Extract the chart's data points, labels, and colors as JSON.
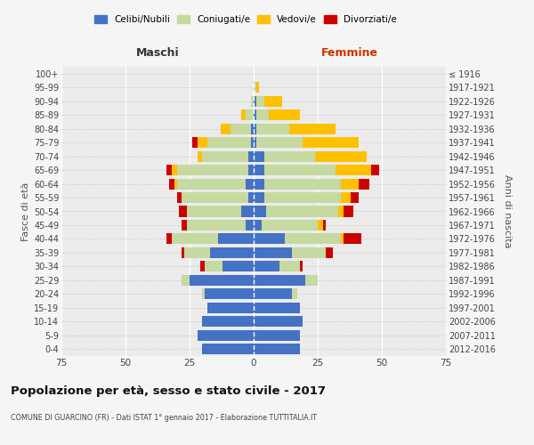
{
  "age_groups": [
    "0-4",
    "5-9",
    "10-14",
    "15-19",
    "20-24",
    "25-29",
    "30-34",
    "35-39",
    "40-44",
    "45-49",
    "50-54",
    "55-59",
    "60-64",
    "65-69",
    "70-74",
    "75-79",
    "80-84",
    "85-89",
    "90-94",
    "95-99",
    "100+"
  ],
  "birth_years": [
    "2012-2016",
    "2007-2011",
    "2002-2006",
    "1997-2001",
    "1992-1996",
    "1987-1991",
    "1982-1986",
    "1977-1981",
    "1972-1976",
    "1967-1971",
    "1962-1966",
    "1957-1961",
    "1952-1956",
    "1947-1951",
    "1942-1946",
    "1937-1941",
    "1932-1936",
    "1927-1931",
    "1922-1926",
    "1917-1921",
    "≤ 1916"
  ],
  "male_celibi": [
    20,
    22,
    20,
    18,
    19,
    25,
    12,
    17,
    14,
    3,
    5,
    2,
    3,
    2,
    2,
    1,
    1,
    0,
    0,
    0,
    0
  ],
  "male_coniugati": [
    0,
    0,
    0,
    0,
    1,
    3,
    7,
    10,
    18,
    23,
    21,
    26,
    27,
    28,
    18,
    17,
    8,
    3,
    1,
    0,
    0
  ],
  "male_vedovi": [
    0,
    0,
    0,
    0,
    0,
    0,
    0,
    0,
    0,
    0,
    0,
    0,
    1,
    2,
    2,
    4,
    4,
    2,
    0,
    0,
    0
  ],
  "male_divorziati": [
    0,
    0,
    0,
    0,
    0,
    0,
    2,
    1,
    2,
    2,
    3,
    2,
    2,
    2,
    0,
    2,
    0,
    0,
    0,
    0,
    0
  ],
  "fem_nubili": [
    18,
    18,
    19,
    18,
    15,
    20,
    10,
    15,
    12,
    3,
    5,
    4,
    4,
    4,
    4,
    1,
    1,
    1,
    1,
    0,
    0
  ],
  "fem_coniugate": [
    0,
    0,
    0,
    0,
    2,
    5,
    8,
    13,
    22,
    22,
    28,
    30,
    30,
    28,
    20,
    18,
    13,
    5,
    3,
    1,
    0
  ],
  "fem_vedove": [
    0,
    0,
    0,
    0,
    0,
    0,
    0,
    0,
    1,
    2,
    2,
    4,
    7,
    14,
    20,
    22,
    18,
    12,
    7,
    1,
    0
  ],
  "fem_divorziate": [
    0,
    0,
    0,
    0,
    0,
    0,
    1,
    3,
    7,
    1,
    4,
    3,
    4,
    3,
    0,
    0,
    0,
    0,
    0,
    0,
    0
  ],
  "c_celibi": "#4472c4",
  "c_coniugati": "#c5d9a0",
  "c_vedovi": "#ffc000",
  "c_divorziati": "#cc0000",
  "legend_labels": [
    "Celibi/Nubili",
    "Coniugati/e",
    "Vedovi/e",
    "Divorziati/e"
  ],
  "title": "Popolazione per età, sesso e stato civile - 2017",
  "subtitle": "COMUNE DI GUARCINO (FR) - Dati ISTAT 1° gennaio 2017 - Elaborazione TUTTITALIA.IT",
  "maschi_label": "Maschi",
  "femmine_label": "Femmine",
  "ylabel_left": "Fasce di età",
  "ylabel_right": "Anni di nascita",
  "xlim": 75,
  "bg_color": "#f5f5f5",
  "plot_bg": "#ebebeb"
}
